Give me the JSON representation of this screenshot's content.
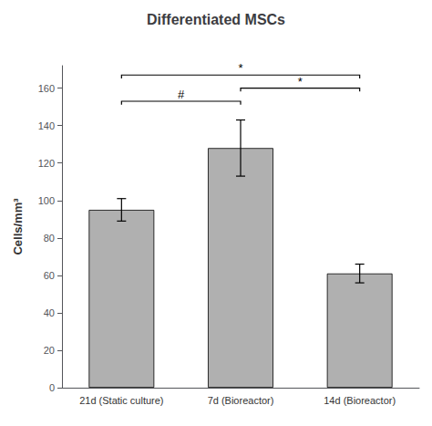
{
  "chart_data": {
    "type": "bar",
    "title": "Differentiated MSCs",
    "ylabel": "Cells/mm³",
    "categories": [
      "21d (Static culture)",
      "7d (Bioreactor)",
      "14d (Bioreactor)"
    ],
    "values": [
      95,
      128,
      61
    ],
    "errors": [
      6,
      15,
      5
    ],
    "color": "#b0b0b0",
    "ylim": [
      0,
      172
    ],
    "yticks": [
      0,
      20,
      40,
      60,
      80,
      100,
      120,
      140,
      160
    ],
    "grid": false,
    "annotations": [
      {
        "from": "21d (Static culture)",
        "to": "14d (Bioreactor)",
        "y": 167,
        "label": "*"
      },
      {
        "from": "21d (Static culture)",
        "to": "7d (Bioreactor)",
        "y": 153,
        "label": "#"
      },
      {
        "from": "7d (Bioreactor)",
        "to": "14d (Bioreactor)",
        "y": 160,
        "label": "*"
      }
    ]
  }
}
